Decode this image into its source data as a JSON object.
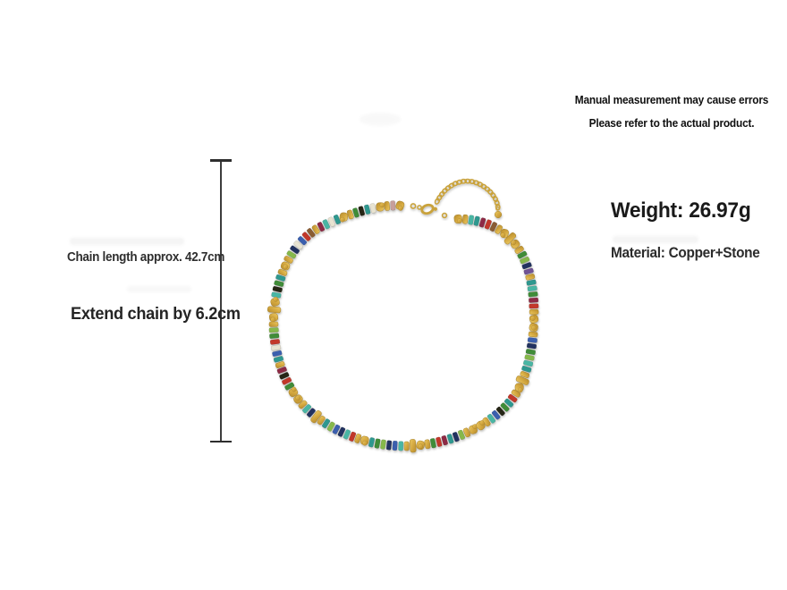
{
  "page": {
    "background": "#ffffff"
  },
  "disclaimer": {
    "line1": "Manual measurement may cause errors",
    "line2": "Please refer to the actual product."
  },
  "dimension": {
    "chain_length_label": "Chain length approx. 42.7cm",
    "extend_chain_label": "Extend chain by 6.2cm"
  },
  "specs": {
    "weight": "Weight: 26.97g",
    "material": "Material: Copper+Stone"
  },
  "necklace": {
    "description": "Gold beaded necklace with multicolor stone heishi disc beads, gold nugget spacers, lobster clasp and gold extender chain with teardrop charm",
    "palette": {
      "gold": "#d2a63e",
      "gold_light": "#ecc963",
      "gold_dark": "#a8832b",
      "chain_gold": "#c9a23a",
      "teal": "#2e988f",
      "turq": "#49b6a4",
      "maroon": "#8e2a44",
      "red": "#c2372a",
      "navy": "#223261",
      "blue": "#3b5fae",
      "green": "#3f8c38",
      "lime": "#86b84b",
      "brown": "#8a5b33",
      "purple": "#6f5294",
      "white": "#e8e3d1",
      "black": "#282519",
      "pink": "#c79f9b"
    },
    "bead_types": {
      "disc": {
        "adv": 6.6,
        "w": 5.2,
        "h": 10.6,
        "rx": 1.7
      },
      "gold": {
        "adv": 6.4,
        "w": 5.4,
        "h": 10.0,
        "rx": 2.0,
        "gold": true
      },
      "nug": {
        "adv": 9.4,
        "w": 8.6,
        "h": 9.4,
        "rx": 3.4,
        "gold": true,
        "jit": true,
        "extra": true
      },
      "rondelle": {
        "adv": 7.6,
        "w": 6.4,
        "h": 14.6,
        "rx": 2.4,
        "gold": true
      }
    },
    "beads": [
      "nug",
      "pink",
      "gold",
      "nug",
      "white",
      "teal",
      "black",
      "green",
      "gold",
      "nug",
      "teal",
      "white",
      "turq",
      "maroon",
      "gold",
      "brown",
      "red",
      "blue",
      "white",
      "navy",
      "lime",
      "gold",
      "nug",
      "gold",
      "teal",
      "green",
      "black",
      "turq",
      "nug",
      "rondelle",
      "nug",
      "gold",
      "lime",
      "green",
      "red",
      "white",
      "blue",
      "teal",
      "gold",
      "maroon",
      "black",
      "red",
      "green",
      "nug",
      "nug",
      "gold",
      "turq",
      "navy",
      "rondelle",
      "gold",
      "teal",
      "lime",
      "blue",
      "navy",
      "turq",
      "red",
      "gold",
      "nug",
      "teal",
      "green",
      "lime",
      "navy",
      "blue",
      "turq",
      "gold",
      "rondelle",
      "nug",
      "gold",
      "green",
      "red",
      "maroon",
      "teal",
      "navy",
      "lime",
      "gold",
      "nug",
      "nug",
      "gold",
      "turq",
      "blue",
      "black",
      "green",
      "teal",
      "red",
      "gold",
      "nug",
      "rondelle",
      "gold",
      "teal",
      "turq",
      "lime",
      "green",
      "navy",
      "blue",
      "gold",
      "nug",
      "nug",
      "gold",
      "red",
      "maroon",
      "green",
      "turq",
      "teal",
      "gold",
      "purple",
      "navy",
      "lime",
      "green",
      "gold",
      "nug",
      "rondelle",
      "nug",
      "gold",
      "brown",
      "red",
      "maroon",
      "teal",
      "turq",
      "gold",
      "nug",
      "black",
      "navy",
      "blue",
      "teal",
      "gold",
      "nug",
      "green",
      "lime",
      "turq",
      "brown",
      "maroon",
      "gold",
      "nug",
      "teal",
      "black",
      "green",
      "nug",
      "gold"
    ]
  }
}
